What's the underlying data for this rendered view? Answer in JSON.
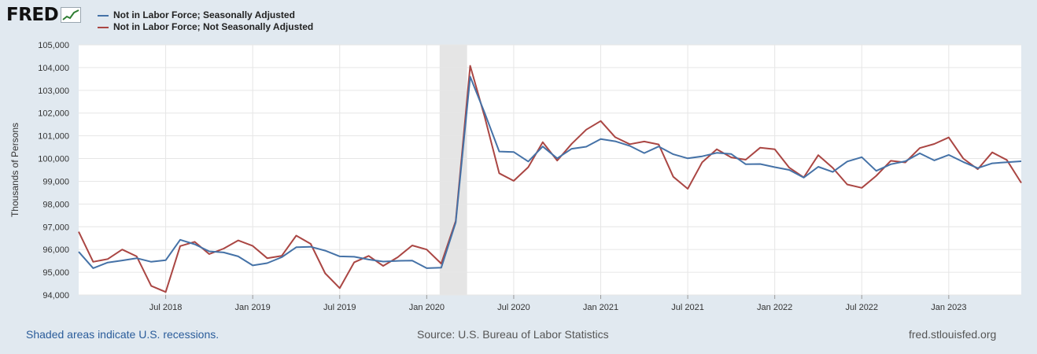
{
  "logo": {
    "text": "FRED",
    "icon": "chart-line-icon"
  },
  "colors": {
    "seasonal": "#4572a7",
    "nonseasonal": "#aa4643",
    "recession": "#e5e5e5",
    "grid": "#e6e6e6"
  },
  "footer": {
    "note": "Shaded areas indicate U.S. recessions.",
    "source": "Source: U.S. Bureau of Labor Statistics",
    "site": "fred.stlouisfed.org"
  },
  "chart_data": {
    "type": "line",
    "title": "",
    "xlabel": "",
    "ylabel": "Thousands of Persons",
    "ylim": [
      94000,
      105000
    ],
    "yticks": [
      94000,
      95000,
      96000,
      97000,
      98000,
      99000,
      100000,
      101000,
      102000,
      103000,
      104000,
      105000
    ],
    "ytick_labels": [
      "94,000",
      "95,000",
      "96,000",
      "97,000",
      "98,000",
      "99,000",
      "100,000",
      "101,000",
      "102,000",
      "103,000",
      "104,000",
      "105,000"
    ],
    "x_start": "Jan 2018",
    "x_end": "Jul 2023",
    "xticks": [
      {
        "label": "Jul 2018",
        "index": 6
      },
      {
        "label": "Jan 2019",
        "index": 12
      },
      {
        "label": "Jul 2019",
        "index": 18
      },
      {
        "label": "Jan 2020",
        "index": 24
      },
      {
        "label": "Jul 2020",
        "index": 30
      },
      {
        "label": "Jan 2021",
        "index": 36
      },
      {
        "label": "Jul 2021",
        "index": 42
      },
      {
        "label": "Jan 2022",
        "index": 48
      },
      {
        "label": "Jul 2022",
        "index": 54
      },
      {
        "label": "Jan 2023",
        "index": 60
      }
    ],
    "recessions": [
      {
        "start": 25,
        "end": 27
      }
    ],
    "series": [
      {
        "name": "Not in Labor Force; Seasonally Adjusted",
        "color": "#4572a7",
        "values": [
          95900,
          95180,
          95430,
          95520,
          95620,
          95460,
          95530,
          96430,
          96230,
          95920,
          95870,
          95700,
          95300,
          95400,
          95660,
          96100,
          96120,
          95950,
          95700,
          95680,
          95560,
          95470,
          95500,
          95510,
          95180,
          95200,
          97190,
          103600,
          102000,
          100310,
          100290,
          99870,
          100530,
          100010,
          100430,
          100520,
          100860,
          100760,
          100560,
          100240,
          100530,
          100190,
          100010,
          100100,
          100250,
          100200,
          99750,
          99760,
          99620,
          99500,
          99160,
          99640,
          99410,
          99870,
          100060,
          99460,
          99750,
          99880,
          100230,
          99920,
          100160,
          99850,
          99580,
          99790,
          99840,
          99880
        ]
      },
      {
        "name": "Not in Labor Force; Not Seasonally Adjusted",
        "color": "#aa4643",
        "values": [
          96780,
          95460,
          95580,
          96000,
          95700,
          94400,
          94130,
          96150,
          96340,
          95800,
          96040,
          96400,
          96160,
          95620,
          95720,
          96610,
          96250,
          94950,
          94300,
          95440,
          95720,
          95280,
          95660,
          96180,
          96000,
          95380,
          97250,
          104080,
          101820,
          99350,
          99020,
          99620,
          100720,
          99910,
          100650,
          101270,
          101650,
          100940,
          100630,
          100750,
          100620,
          99200,
          98670,
          99840,
          100410,
          100050,
          99950,
          100480,
          100410,
          99600,
          99170,
          100150,
          99590,
          98860,
          98710,
          99240,
          99900,
          99830,
          100460,
          100640,
          100930,
          100000,
          99530,
          100270,
          99940,
          98930
        ]
      }
    ]
  }
}
